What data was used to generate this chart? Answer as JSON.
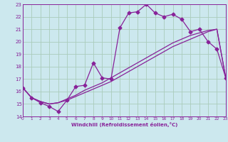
{
  "xlabel": "Windchill (Refroidissement éolien,°C)",
  "bg_color": "#cce8ee",
  "grid_color": "#aaccbb",
  "line_color": "#882299",
  "xlim": [
    0,
    23
  ],
  "ylim": [
    14,
    23
  ],
  "xticks": [
    0,
    1,
    2,
    3,
    4,
    5,
    6,
    7,
    8,
    9,
    10,
    11,
    12,
    13,
    14,
    15,
    16,
    17,
    18,
    19,
    20,
    21,
    22,
    23
  ],
  "yticks": [
    14,
    15,
    16,
    17,
    18,
    19,
    20,
    21,
    22,
    23
  ],
  "line1_x": [
    0,
    1,
    2,
    3,
    4,
    5,
    6,
    7,
    8,
    9,
    10,
    11,
    12,
    13,
    14,
    15,
    16,
    17,
    18,
    19,
    20,
    21,
    22,
    23
  ],
  "line1_y": [
    16.3,
    15.5,
    15.1,
    14.8,
    14.4,
    15.3,
    16.4,
    16.5,
    18.3,
    17.1,
    17.0,
    21.1,
    22.3,
    22.4,
    23.0,
    22.3,
    22.0,
    22.2,
    21.8,
    20.8,
    21.0,
    20.0,
    19.4,
    17.1
  ],
  "line2_x": [
    0,
    1,
    2,
    3,
    4,
    5,
    6,
    7,
    8,
    9,
    10,
    11,
    12,
    13,
    14,
    15,
    16,
    17,
    18,
    19,
    20,
    21,
    22,
    23
  ],
  "line2_y": [
    16.3,
    15.5,
    15.2,
    15.0,
    15.1,
    15.4,
    15.7,
    16.1,
    16.4,
    16.7,
    17.1,
    17.5,
    17.9,
    18.3,
    18.7,
    19.1,
    19.5,
    19.9,
    20.2,
    20.5,
    20.7,
    20.9,
    21.0,
    17.1
  ],
  "line3_x": [
    0,
    1,
    2,
    3,
    4,
    5,
    6,
    7,
    8,
    9,
    10,
    11,
    12,
    13,
    14,
    15,
    16,
    17,
    18,
    19,
    20,
    21,
    22,
    23
  ],
  "line3_y": [
    16.3,
    15.5,
    15.2,
    15.0,
    15.1,
    15.3,
    15.6,
    15.9,
    16.2,
    16.5,
    16.8,
    17.2,
    17.6,
    18.0,
    18.4,
    18.8,
    19.2,
    19.6,
    19.9,
    20.2,
    20.5,
    20.8,
    21.0,
    17.1
  ]
}
